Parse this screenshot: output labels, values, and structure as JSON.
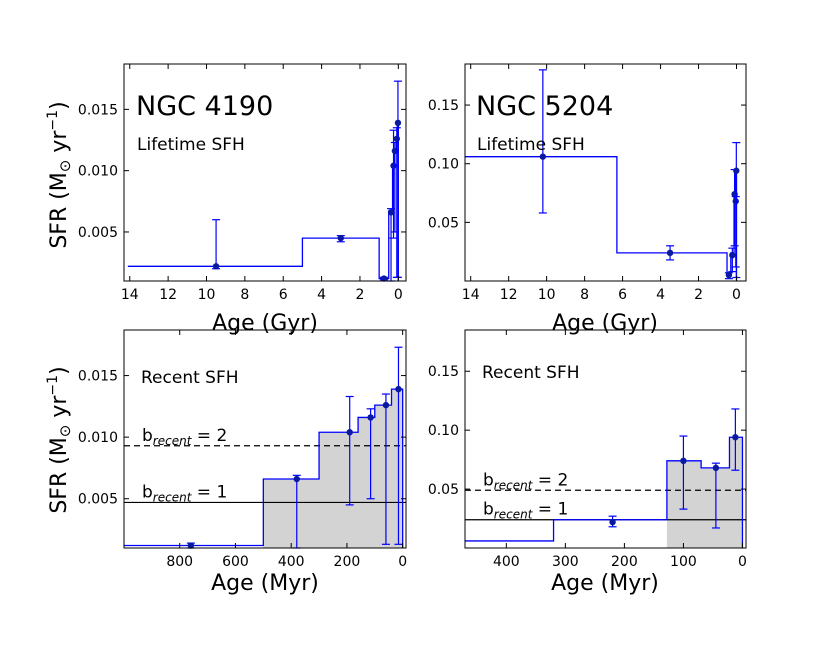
{
  "colors": {
    "series": "#0000ff",
    "marker": "#0a1aa0",
    "shade": "#d3d3d3",
    "axis": "#000000"
  },
  "figure_labels": {
    "ylabel_main": "SFR (M",
    "ylabel_sun": "⊙",
    "ylabel_tail": " yr",
    "ylabel_exp": "−1",
    "ylabel_close": ")"
  },
  "chart_data": [
    {
      "id": "ngc4190-lifetime",
      "type": "line",
      "title": "NGC 4190",
      "subtitle": "Lifetime SFH",
      "xlabel": "Age (Gyr)",
      "ylabel": "SFR (M⊙ yr−1)",
      "x_reversed": true,
      "xlim": [
        14.3,
        -0.4
      ],
      "ylim": [
        0.001,
        0.0187
      ],
      "xticks": [
        14,
        12,
        10,
        8,
        6,
        4,
        2,
        0
      ],
      "xtick_labels": [
        "14",
        "12",
        "10",
        "8",
        "6",
        "4",
        "2",
        "0"
      ],
      "yticks": [
        0.005,
        0.01,
        0.015
      ],
      "ytick_labels": [
        "0.005",
        "0.010",
        "0.015"
      ],
      "step_bins": [
        {
          "lo": 5.0,
          "hi": 14.1,
          "sfr": 0.0022
        },
        {
          "lo": 1.0,
          "hi": 5.0,
          "sfr": 0.0045
        },
        {
          "lo": 0.5,
          "hi": 1.0,
          "sfr": 0.0012
        },
        {
          "lo": 0.3,
          "hi": 0.5,
          "sfr": 0.0067
        },
        {
          "lo": 0.2,
          "hi": 0.3,
          "sfr": 0.0105
        },
        {
          "lo": 0.1,
          "hi": 0.2,
          "sfr": 0.0117
        },
        {
          "lo": 0.05,
          "hi": 0.1,
          "sfr": 0.0127
        },
        {
          "lo": 0.0,
          "hi": 0.05,
          "sfr": 0.0139
        }
      ],
      "points": [
        {
          "x": 9.5,
          "y": 0.0022,
          "ylo": 0.002,
          "yhi": 0.006
        },
        {
          "x": 3.0,
          "y": 0.0045,
          "ylo": 0.0042,
          "yhi": 0.0047
        },
        {
          "x": 0.75,
          "y": 0.0012,
          "ylo": 0.0011,
          "yhi": 0.0013
        },
        {
          "x": 0.38,
          "y": 0.0066,
          "ylo": 0.001,
          "yhi": 0.0069
        },
        {
          "x": 0.25,
          "y": 0.0104,
          "ylo": 0.0045,
          "yhi": 0.0133
        },
        {
          "x": 0.18,
          "y": 0.0116,
          "ylo": 0.005,
          "yhi": 0.0123
        },
        {
          "x": 0.08,
          "y": 0.0126,
          "ylo": 0.0013,
          "yhi": 0.0135
        },
        {
          "x": 0.02,
          "y": 0.0139,
          "ylo": 0.0013,
          "yhi": 0.0173
        }
      ]
    },
    {
      "id": "ngc5204-lifetime",
      "type": "line",
      "title": "NGC 5204",
      "subtitle": "Lifetime SFH",
      "xlabel": "Age (Gyr)",
      "ylabel": "",
      "x_reversed": true,
      "xlim": [
        14.3,
        -0.5
      ],
      "ylim": [
        0.0,
        0.185
      ],
      "xticks": [
        14,
        12,
        10,
        8,
        6,
        4,
        2,
        0
      ],
      "xtick_labels": [
        "14",
        "12",
        "10",
        "8",
        "6",
        "4",
        "2",
        "0"
      ],
      "yticks": [
        0.05,
        0.1,
        0.15
      ],
      "ytick_labels": [
        "0.05",
        "0.10",
        "0.15"
      ],
      "step_bins": [
        {
          "lo": 6.3,
          "hi": 14.3,
          "sfr": 0.106
        },
        {
          "lo": 0.5,
          "hi": 6.3,
          "sfr": 0.024
        },
        {
          "lo": 0.3,
          "hi": 0.5,
          "sfr": 0.006
        },
        {
          "lo": 0.13,
          "hi": 0.3,
          "sfr": 0.024
        },
        {
          "lo": 0.05,
          "hi": 0.13,
          "sfr": 0.074
        },
        {
          "lo": 0.0,
          "hi": 0.05,
          "sfr": 0.094
        }
      ],
      "points": [
        {
          "x": 10.2,
          "y": 0.106,
          "ylo": 0.058,
          "yhi": 0.18
        },
        {
          "x": 3.5,
          "y": 0.024,
          "ylo": 0.018,
          "yhi": 0.03
        },
        {
          "x": 0.4,
          "y": 0.005,
          "ylo": 0.002,
          "yhi": 0.007
        },
        {
          "x": 0.22,
          "y": 0.022,
          "ylo": 0.008,
          "yhi": 0.028
        },
        {
          "x": 0.1,
          "y": 0.074,
          "ylo": 0.03,
          "yhi": 0.095
        },
        {
          "x": 0.04,
          "y": 0.068,
          "ylo": 0.012,
          "yhi": 0.072
        },
        {
          "x": 0.01,
          "y": 0.094,
          "ylo": 0.003,
          "yhi": 0.118
        }
      ]
    },
    {
      "id": "ngc4190-recent",
      "type": "area",
      "title": "",
      "subtitle": "Recent SFH",
      "xlabel": "Age (Myr)",
      "ylabel": "SFR (M⊙ yr−1)",
      "x_reversed": true,
      "xlim": [
        1000,
        -12
      ],
      "ylim": [
        0.001,
        0.0187
      ],
      "xticks": [
        800,
        600,
        400,
        200,
        0
      ],
      "xtick_labels": [
        "800",
        "600",
        "400",
        "200",
        "0"
      ],
      "yticks": [
        0.005,
        0.01,
        0.015
      ],
      "ytick_labels": [
        "0.005",
        "0.010",
        "0.015"
      ],
      "shade_from": 500,
      "step_bins": [
        {
          "lo": 500,
          "hi": 1000,
          "sfr": 0.0012
        },
        {
          "lo": 300,
          "hi": 500,
          "sfr": 0.0066
        },
        {
          "lo": 160,
          "hi": 300,
          "sfr": 0.0104
        },
        {
          "lo": 100,
          "hi": 160,
          "sfr": 0.0116
        },
        {
          "lo": 40,
          "hi": 100,
          "sfr": 0.0126
        },
        {
          "lo": 0,
          "hi": 40,
          "sfr": 0.0139
        }
      ],
      "points": [
        {
          "x": 760,
          "y": 0.0012,
          "ylo": 0.001,
          "yhi": 0.0014
        },
        {
          "x": 380,
          "y": 0.0066,
          "ylo": 0.001,
          "yhi": 0.0069
        },
        {
          "x": 190,
          "y": 0.0104,
          "ylo": 0.0045,
          "yhi": 0.0133
        },
        {
          "x": 115,
          "y": 0.0116,
          "ylo": 0.005,
          "yhi": 0.0123
        },
        {
          "x": 60,
          "y": 0.0126,
          "ylo": 0.0013,
          "yhi": 0.0135
        },
        {
          "x": 15,
          "y": 0.0139,
          "ylo": 0.0013,
          "yhi": 0.0173
        }
      ],
      "hlines": [
        {
          "y": 0.0093,
          "style": "dashed",
          "label": "b",
          "sub": "recent",
          "rest": " = 2"
        },
        {
          "y": 0.0047,
          "style": "solid",
          "label": "b",
          "sub": "recent",
          "rest": " = 1"
        }
      ]
    },
    {
      "id": "ngc5204-recent",
      "type": "area",
      "title": "",
      "subtitle": "Recent SFH",
      "xlabel": "Age (Myr)",
      "ylabel": "",
      "x_reversed": true,
      "xlim": [
        470,
        -6
      ],
      "ylim": [
        0.0,
        0.185
      ],
      "xticks": [
        400,
        300,
        200,
        100,
        0
      ],
      "xtick_labels": [
        "400",
        "300",
        "200",
        "100",
        "0"
      ],
      "yticks": [
        0.05,
        0.1,
        0.15
      ],
      "ytick_labels": [
        "0.05",
        "0.10",
        "0.15"
      ],
      "shade_from": 128,
      "step_bins": [
        {
          "lo": 320,
          "hi": 470,
          "sfr": 0.006
        },
        {
          "lo": 128,
          "hi": 320,
          "sfr": 0.024
        },
        {
          "lo": 70,
          "hi": 128,
          "sfr": 0.074
        },
        {
          "lo": 22,
          "hi": 70,
          "sfr": 0.068
        },
        {
          "lo": 0,
          "hi": 22,
          "sfr": 0.094
        }
      ],
      "points": [
        {
          "x": 220,
          "y": 0.022,
          "ylo": 0.018,
          "yhi": 0.027
        },
        {
          "x": 100,
          "y": 0.074,
          "ylo": 0.033,
          "yhi": 0.095
        },
        {
          "x": 45,
          "y": 0.068,
          "ylo": 0.017,
          "yhi": 0.072
        },
        {
          "x": 12,
          "y": 0.094,
          "ylo": 0.066,
          "yhi": 0.118
        }
      ],
      "hlines": [
        {
          "y": 0.049,
          "style": "dashed",
          "label": "b",
          "sub": "recent",
          "rest": " = 2"
        },
        {
          "y": 0.024,
          "style": "solid",
          "label": "b",
          "sub": "recent",
          "rest": " = 1"
        }
      ]
    }
  ]
}
